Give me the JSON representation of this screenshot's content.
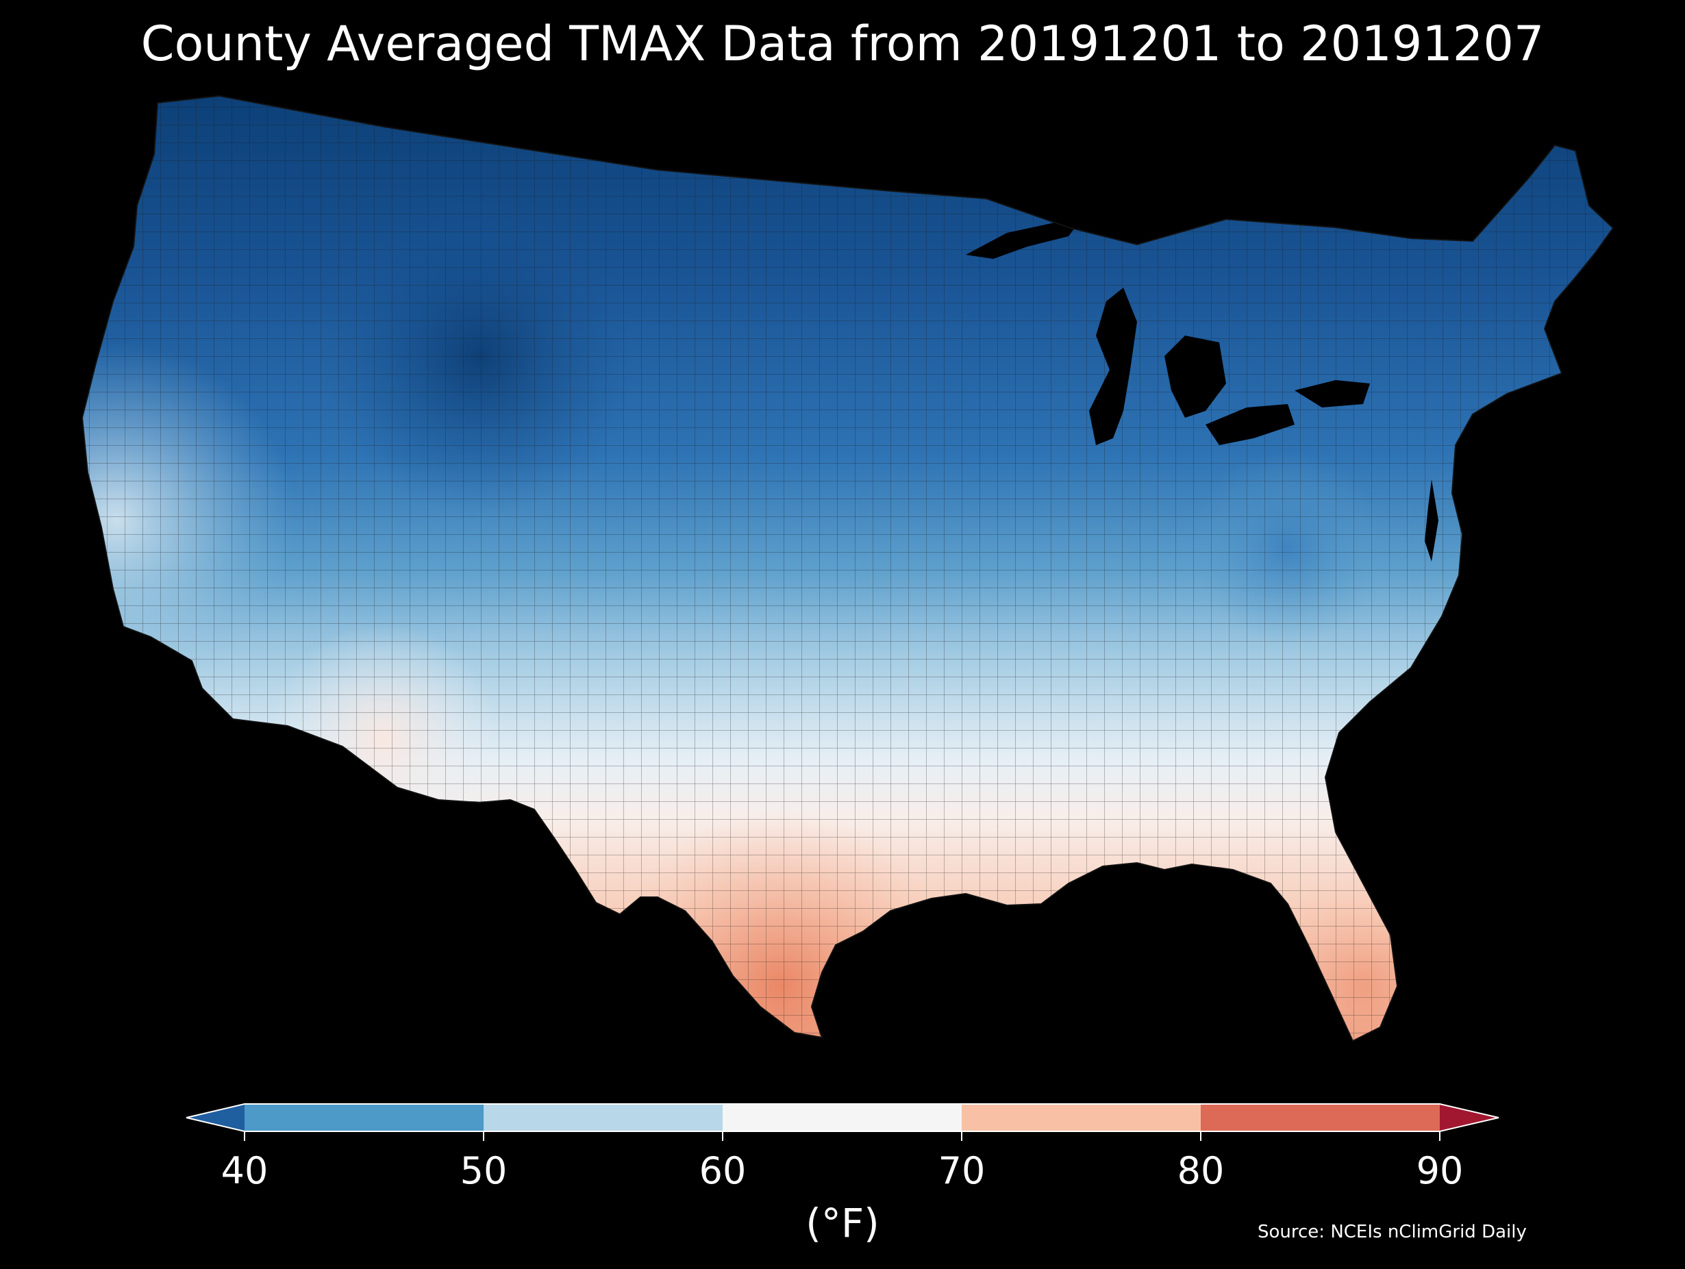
{
  "map": {
    "title": "County Averaged TMAX Data from 20191201 to 20191207",
    "region": "Contiguous United States",
    "background_color": "#000000",
    "county_outline_color": "#1a1a1a"
  },
  "legend": {
    "type": "colorbar",
    "orientation": "horizontal",
    "placement": "bottom",
    "ticks": [
      "40",
      "50",
      "60",
      "70",
      "80",
      "90"
    ],
    "unit_label": "(°F)",
    "extend": "both",
    "bins": [
      {
        "from": null,
        "to": 40,
        "color": "#1f5e9f"
      },
      {
        "from": 40,
        "to": 50,
        "color": "#4d99c8"
      },
      {
        "from": 50,
        "to": 60,
        "color": "#b8d7e8"
      },
      {
        "from": 60,
        "to": 70,
        "color": "#f5f5f5"
      },
      {
        "from": 70,
        "to": 80,
        "color": "#f8c1a5"
      },
      {
        "from": 80,
        "to": 90,
        "color": "#dc6a57"
      },
      {
        "from": 90,
        "to": null,
        "color": "#a0172f"
      }
    ]
  },
  "source_note": "Source: NCEIs nClimGrid Daily"
}
